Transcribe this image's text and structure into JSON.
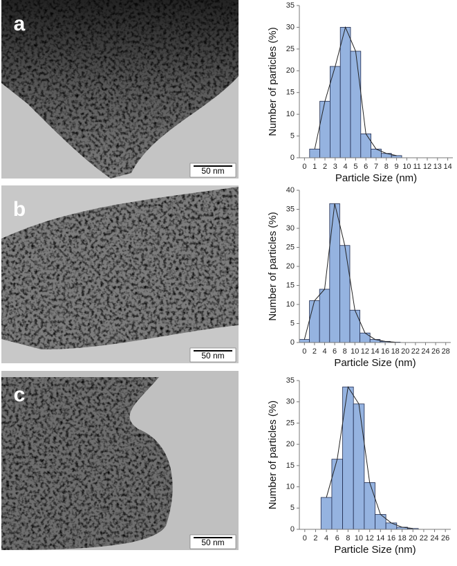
{
  "panels": [
    {
      "label": "a",
      "scale_bar": "50 nm"
    },
    {
      "label": "b",
      "scale_bar": "50 nm"
    },
    {
      "label": "c",
      "scale_bar": "50 nm"
    }
  ],
  "chart_data": [
    {
      "type": "histogram",
      "x_label": "Particle Size (nm)",
      "y_label": "Number of particles (%)",
      "bins": [
        0.5,
        1.5,
        2.5,
        3.5,
        4.5,
        5.5,
        6.5,
        7.5,
        8.5,
        9.5
      ],
      "values": [
        2,
        13,
        21,
        30,
        24.5,
        5.5,
        2,
        1,
        0.5
      ],
      "color": "#95b3e0",
      "edge_color": "#1f2a4d",
      "xlim": [
        -0.5,
        14.5
      ],
      "xticks": [
        0,
        1,
        2,
        3,
        4,
        5,
        6,
        7,
        8,
        9,
        10,
        11,
        12,
        13,
        14
      ],
      "ylim": [
        0,
        35
      ],
      "yticks": [
        0,
        5,
        10,
        15,
        20,
        25,
        30,
        35
      ]
    },
    {
      "type": "histogram",
      "x_label": "Particle Size (nm)",
      "y_label": "Number of particles (%)",
      "bins": [
        -1,
        1,
        3,
        5,
        7,
        9,
        11,
        13,
        15,
        17,
        19
      ],
      "values": [
        0.8,
        11,
        14,
        36.5,
        25.5,
        8.5,
        2.5,
        0.8,
        0.3,
        0.1
      ],
      "color": "#95b3e0",
      "edge_color": "#1f2a4d",
      "xlim": [
        -1,
        29
      ],
      "xticks": [
        0,
        2,
        4,
        6,
        8,
        10,
        12,
        14,
        16,
        18,
        20,
        22,
        24,
        26,
        28
      ],
      "ylim": [
        0,
        40
      ],
      "yticks": [
        0,
        5,
        10,
        15,
        20,
        25,
        30,
        35,
        40
      ]
    },
    {
      "type": "histogram",
      "x_label": "Particle Size (nm)",
      "y_label": "Number of particles (%)",
      "bins": [
        3,
        5,
        7,
        9,
        11,
        13,
        15,
        17,
        19,
        21
      ],
      "values": [
        7.5,
        16.5,
        33.5,
        29.5,
        11,
        3.5,
        1.5,
        0.5,
        0.2
      ],
      "color": "#95b3e0",
      "edge_color": "#1f2a4d",
      "xlim": [
        -1,
        27
      ],
      "xticks": [
        0,
        2,
        4,
        6,
        8,
        10,
        12,
        14,
        16,
        18,
        20,
        22,
        24,
        26
      ],
      "ylim": [
        0,
        35
      ],
      "yticks": [
        0,
        5,
        10,
        15,
        20,
        25,
        30,
        35
      ]
    }
  ]
}
